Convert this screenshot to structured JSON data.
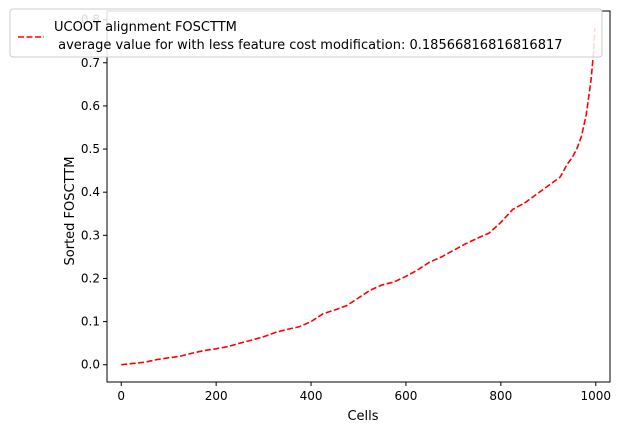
{
  "chart_data": {
    "type": "line",
    "title": "",
    "xlabel": "Cells",
    "ylabel": "Sorted FOSCTTM",
    "xlim": [
      -30,
      1030
    ],
    "ylim": [
      -0.04,
      0.82
    ],
    "xticks": [
      0,
      200,
      400,
      600,
      800,
      1000
    ],
    "xtick_labels": [
      "0",
      "200",
      "400",
      "600",
      "800",
      "1000"
    ],
    "yticks": [
      0.0,
      0.1,
      0.2,
      0.3,
      0.4,
      0.5,
      0.6,
      0.7,
      0.8
    ],
    "ytick_labels": [
      "0.0",
      "0.1",
      "0.2",
      "0.3",
      "0.4",
      "0.5",
      "0.6",
      "0.7",
      "0.8"
    ],
    "grid": false,
    "legend_position": "top",
    "legend": {
      "label_line1": "UCOOT alignment FOSCTTM",
      "label_line2": " average value for with less feature cost modification: 0.18566816816816817"
    },
    "series": [
      {
        "name": "UCOOT alignment FOSCTTM\n average value for with less feature cost modification: 0.18566816816816817",
        "color": "#ff0000",
        "linestyle": "dashed",
        "x": [
          0,
          25,
          50,
          75,
          100,
          125,
          150,
          175,
          200,
          225,
          250,
          275,
          300,
          325,
          350,
          375,
          400,
          425,
          450,
          475,
          500,
          525,
          550,
          575,
          600,
          625,
          650,
          675,
          700,
          725,
          750,
          775,
          800,
          825,
          850,
          875,
          900,
          925,
          940,
          950,
          960,
          970,
          980,
          985,
          990,
          995,
          998
        ],
        "values": [
          0.0,
          0.003,
          0.006,
          0.012,
          0.016,
          0.02,
          0.027,
          0.033,
          0.037,
          0.042,
          0.05,
          0.057,
          0.065,
          0.075,
          0.082,
          0.088,
          0.1,
          0.118,
          0.127,
          0.137,
          0.155,
          0.173,
          0.185,
          0.192,
          0.205,
          0.22,
          0.238,
          0.25,
          0.265,
          0.28,
          0.293,
          0.305,
          0.33,
          0.36,
          0.375,
          0.395,
          0.415,
          0.435,
          0.465,
          0.48,
          0.5,
          0.53,
          0.58,
          0.62,
          0.66,
          0.72,
          0.78
        ]
      }
    ]
  }
}
